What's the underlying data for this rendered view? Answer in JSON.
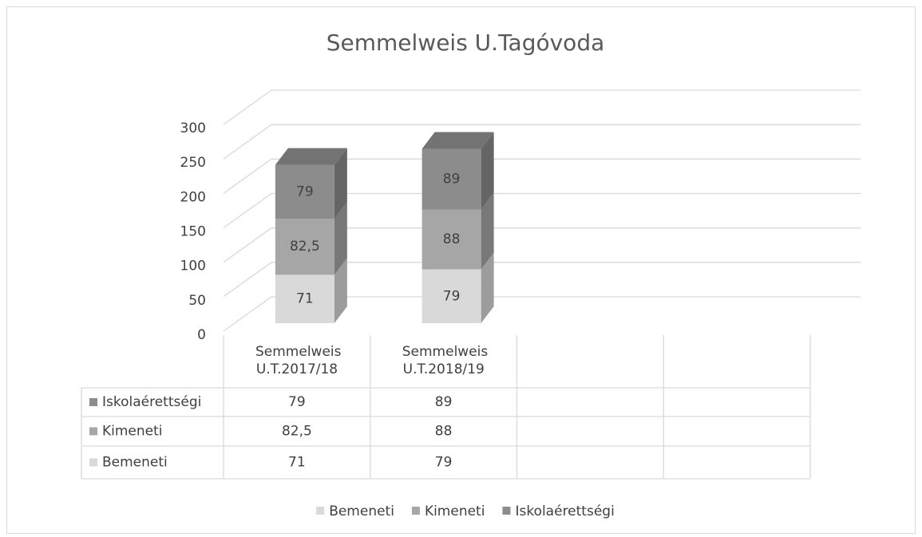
{
  "chart_data": {
    "type": "bar3d_stacked",
    "title": "Semmelweis U.Tagóvoda",
    "categories": [
      "Semmelweis U.T.2017/18",
      "Semmelweis U.T.2018/19",
      null,
      null
    ],
    "series": [
      {
        "name": "Bemeneti",
        "color": "#d9d9d9",
        "values": [
          71,
          79,
          null,
          null
        ]
      },
      {
        "name": "Kimeneti",
        "color": "#a6a6a6",
        "values": [
          82.5,
          88,
          null,
          null
        ],
        "value_labels": [
          "82,5",
          "88",
          null,
          null
        ]
      },
      {
        "name": "Iskolaérettségi",
        "color": "#8c8c8c",
        "values": [
          79,
          89,
          null,
          null
        ]
      }
    ],
    "ylim": [
      0,
      300
    ],
    "yticks": [
      0,
      50,
      100,
      150,
      200,
      250,
      300
    ],
    "grid": true,
    "legend": "bottom",
    "data_table": true
  }
}
